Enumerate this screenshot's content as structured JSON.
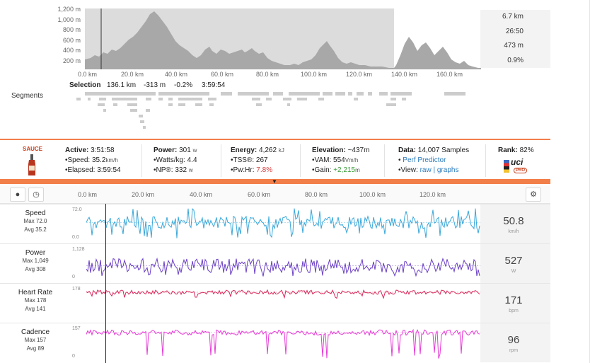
{
  "elevation": {
    "y_ticks": [
      "1,200 m",
      "1,000 m",
      "800 m",
      "600 m",
      "400 m",
      "200 m"
    ],
    "x_ticks": [
      "0.0 km",
      "20.0 km",
      "40.0 km",
      "60.0 km",
      "80.0 km",
      "100.0 km",
      "120.0 km",
      "140.0 km",
      "160.0 km"
    ],
    "side_stats": [
      "6.7 km",
      "26:50",
      "473 m",
      "0.9%"
    ]
  },
  "selection": {
    "label": "Selection",
    "distance": "136.1 km",
    "elevation": "-313 m",
    "grade": "-0.2%",
    "time": "3:59:54"
  },
  "segments": {
    "label": "Segments"
  },
  "stats": {
    "logo_text": "SAUCE",
    "active_label": "Active:",
    "active_value": "3:51:58",
    "speed_label": "Speed:",
    "speed_value": "35.2",
    "speed_unit": "km/h",
    "elapsed_label": "Elapsed:",
    "elapsed_value": "3:59:54",
    "power_label": "Power:",
    "power_value": "301",
    "power_unit": "w",
    "wkg_label": "Watts/kg:",
    "wkg_value": "4.4",
    "np_label": "NP®:",
    "np_value": "332",
    "np_unit": "w",
    "energy_label": "Energy:",
    "energy_value": "4,262",
    "energy_unit": "kJ",
    "tss_label": "TSS®:",
    "tss_value": "267",
    "pwhr_label": "Pw:Hr:",
    "pwhr_value": "7.8%",
    "elev_label": "Elevation:",
    "elev_value": "~437m",
    "vam_label": "VAM:",
    "vam_value": "554",
    "vam_unit": "Vm/h",
    "gain_label": "Gain:",
    "gain_value": "+2,215",
    "gain_unit": "m",
    "data_label": "Data:",
    "data_value": "14,007 Samples",
    "perf_link": "Perf Predictor",
    "view_label": "View:",
    "view_raw": "raw",
    "view_sep": "|",
    "view_graphs": "graphs",
    "rank_label": "Rank:",
    "rank_value": "82%",
    "uci_text": "uci",
    "uci_sub": "PRO"
  },
  "toolbar": {
    "x_ticks": [
      "0.0 km",
      "20.0 km",
      "40.0 km",
      "60.0 km",
      "80.0 km",
      "100.0 km",
      "120.0 km"
    ],
    "pin_icon": "map-pin-icon",
    "clock_icon": "clock-icon",
    "gear_icon": "gear-icon"
  },
  "streams": [
    {
      "name": "Speed",
      "max_label": "Max 72.0",
      "avg_label": "Avg 35.2",
      "ymax": "72.0",
      "ymin": "0.0",
      "value": "50.8",
      "unit": "km/h",
      "color": "#3aa7d9"
    },
    {
      "name": "Power",
      "max_label": "Max 1,049",
      "avg_label": "Avg 308",
      "ymax": "1,128",
      "ymin": "0",
      "value": "527",
      "unit": "W",
      "color": "#6a3fc4"
    },
    {
      "name": "Heart Rate",
      "max_label": "Max 178",
      "avg_label": "Avg 141",
      "ymax": "178",
      "ymin": "",
      "value": "171",
      "unit": "bpm",
      "color": "#d8285a"
    },
    {
      "name": "Cadence",
      "max_label": "Max 157",
      "avg_label": "Avg 89",
      "ymax": "157",
      "ymin": "0",
      "value": "96",
      "unit": "rpm",
      "color": "#e53ad6"
    }
  ]
}
